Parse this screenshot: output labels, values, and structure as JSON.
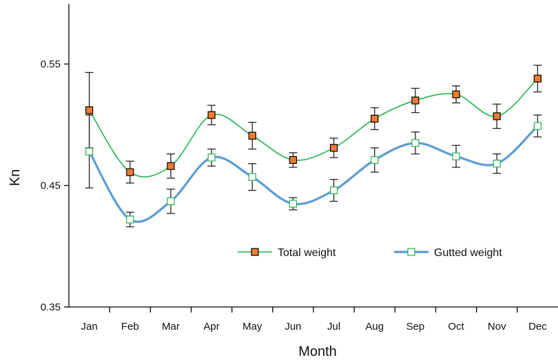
{
  "chart_data": {
    "type": "line",
    "title": "",
    "xlabel": "Month",
    "ylabel": "Kn",
    "categories": [
      "Jan",
      "Feb",
      "Mar",
      "Apr",
      "May",
      "Jun",
      "Jul",
      "Aug",
      "Sep",
      "Oct",
      "Nov",
      "Dec"
    ],
    "yticks": [
      "0.35",
      "0.45",
      "0.55"
    ],
    "ylim": [
      0.35,
      0.55
    ],
    "grid": false,
    "legend_position": "inside-bottom-right",
    "series": [
      {
        "name": "Total weight",
        "line_color": "#22b24c",
        "marker_fill": "#ed7d31",
        "marker_stroke": "#000000",
        "values": [
          0.512,
          0.461,
          0.466,
          0.508,
          0.491,
          0.471,
          0.481,
          0.505,
          0.52,
          0.525,
          0.507,
          0.538
        ],
        "error": [
          0.031,
          0.009,
          0.01,
          0.008,
          0.011,
          0.006,
          0.008,
          0.009,
          0.01,
          0.007,
          0.01,
          0.011
        ]
      },
      {
        "name": "Gutted weight",
        "line_color": "#5b9bd5",
        "marker_fill": "#ffffff",
        "marker_stroke": "#22b24c",
        "values": [
          0.478,
          0.422,
          0.437,
          0.473,
          0.457,
          0.435,
          0.446,
          0.471,
          0.485,
          0.474,
          0.468,
          0.499
        ],
        "error": [
          0.03,
          0.006,
          0.01,
          0.007,
          0.011,
          0.005,
          0.009,
          0.01,
          0.009,
          0.009,
          0.008,
          0.009
        ]
      }
    ]
  }
}
